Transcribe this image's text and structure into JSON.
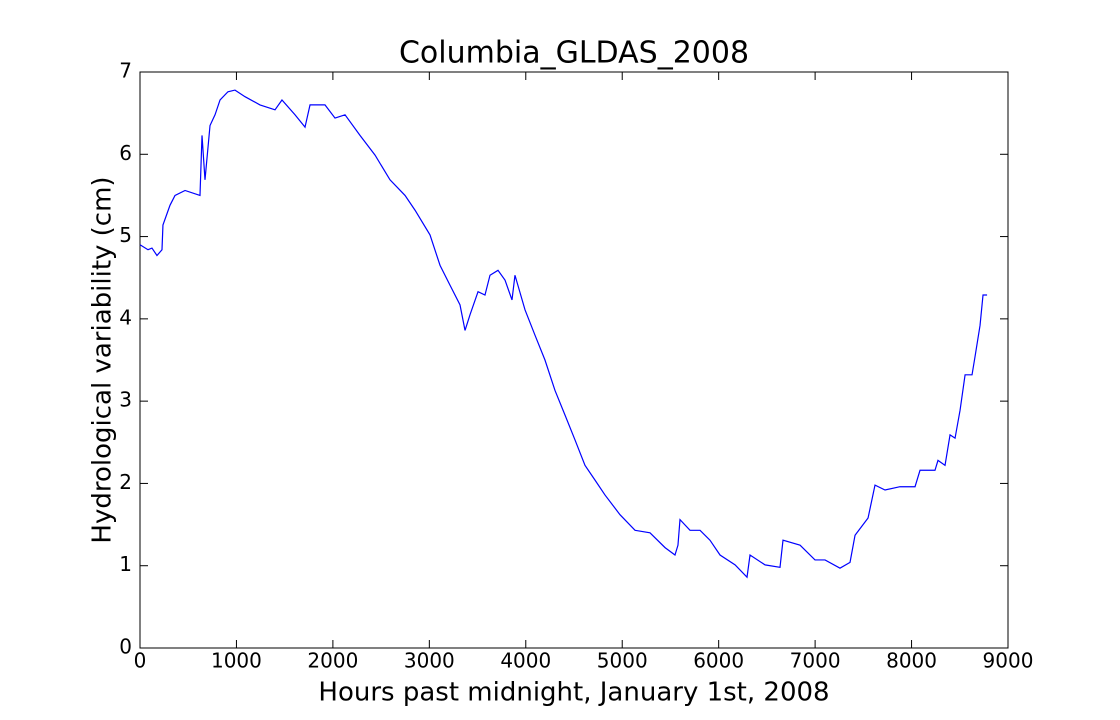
{
  "chart_data": {
    "type": "line",
    "title": "Columbia_GLDAS_2008",
    "x_label": "Hours past midnight, January 1st, 2008",
    "y_label": "Hydrological variability (cm)",
    "xlim": [
      0,
      9000
    ],
    "ylim": [
      0,
      7
    ],
    "xticks": [
      0,
      1000,
      2000,
      3000,
      4000,
      5000,
      6000,
      7000,
      8000,
      9000
    ],
    "yticks": [
      0,
      1,
      2,
      3,
      4,
      5,
      6,
      7
    ],
    "grid": false,
    "series": [
      {
        "name": "Columbia_GLDAS_2008",
        "color": "#0000ff",
        "x": [
          0,
          83,
          124,
          176,
          228,
          238,
          311,
          363,
          467,
          622,
          643,
          674,
          726,
          778,
          830,
          912,
          985,
          1089,
          1244,
          1400,
          1472,
          1607,
          1711,
          1763,
          1918,
          2022,
          2126,
          2281,
          2437,
          2592,
          2748,
          2852,
          3007,
          3111,
          3214,
          3318,
          3370,
          3422,
          3505,
          3577,
          3629,
          3712,
          3785,
          3857,
          3888,
          3992,
          4096,
          4199,
          4303,
          4407,
          4510,
          4614,
          4718,
          4821,
          4977,
          5133,
          5288,
          5444,
          5547,
          5578,
          5599,
          5703,
          5807,
          5910,
          6014,
          6170,
          6294,
          6325,
          6481,
          6636,
          6667,
          6844,
          6999,
          7103,
          7258,
          7362,
          7414,
          7549,
          7621,
          7725,
          7880,
          8036,
          8088,
          8243,
          8274,
          8347,
          8399,
          8451,
          8503,
          8555,
          8627,
          8658,
          8710,
          8741,
          8783
        ],
        "values": [
          4.9,
          4.84,
          4.86,
          4.77,
          4.84,
          5.14,
          5.38,
          5.5,
          5.56,
          5.5,
          6.23,
          5.69,
          6.35,
          6.48,
          6.66,
          6.76,
          6.78,
          6.7,
          6.6,
          6.54,
          6.66,
          6.48,
          6.33,
          6.6,
          6.6,
          6.44,
          6.48,
          6.23,
          5.99,
          5.69,
          5.5,
          5.32,
          5.02,
          4.65,
          4.41,
          4.17,
          3.86,
          4.05,
          4.33,
          4.29,
          4.53,
          4.59,
          4.47,
          4.23,
          4.53,
          4.11,
          3.8,
          3.5,
          3.13,
          2.83,
          2.53,
          2.22,
          2.04,
          1.86,
          1.62,
          1.43,
          1.4,
          1.22,
          1.13,
          1.25,
          1.56,
          1.43,
          1.43,
          1.31,
          1.13,
          1.01,
          0.86,
          1.13,
          1.01,
          0.98,
          1.31,
          1.25,
          1.07,
          1.07,
          0.97,
          1.04,
          1.37,
          1.58,
          1.98,
          1.92,
          1.96,
          1.96,
          2.16,
          2.16,
          2.28,
          2.22,
          2.59,
          2.55,
          2.89,
          3.32,
          3.32,
          3.54,
          3.92,
          4.29,
          4.29
        ]
      }
    ]
  }
}
